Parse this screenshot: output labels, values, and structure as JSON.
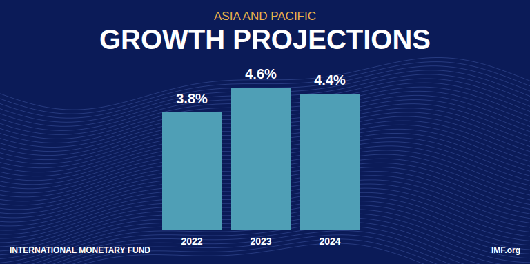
{
  "chart_data": {
    "type": "bar",
    "title": "GROWTH PROJECTIONS",
    "subtitle": "ASIA AND PACIFIC",
    "categories": [
      "2022",
      "2023",
      "2024"
    ],
    "values": [
      3.8,
      4.6,
      4.4
    ],
    "value_labels": [
      "3.8%",
      "4.6%",
      "4.4%"
    ],
    "color": "#4f9fb6",
    "data_labels": true,
    "tick_labels": "x",
    "grid": false,
    "annotations": [
      "INTERNATIONAL MONETARY FUND",
      "IMF.org"
    ]
  }
}
